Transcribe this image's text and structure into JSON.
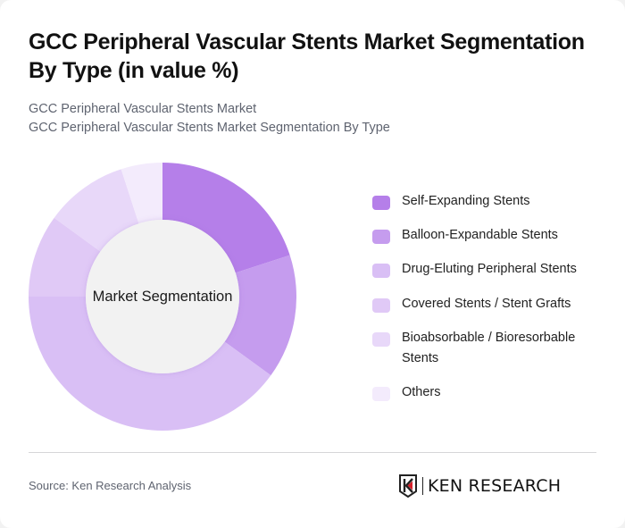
{
  "header": {
    "title": "GCC Peripheral Vascular Stents Market Segmentation By Type (in value %)",
    "subtitle_1": "GCC Peripheral Vascular Stents Market",
    "subtitle_2": "GCC Peripheral Vascular Stents Market Segmentation By Type"
  },
  "donut": {
    "center_label": "Market Segmentation"
  },
  "legend": {
    "items": [
      {
        "label": "Self-Expanding Stents",
        "color": "#b57fe9"
      },
      {
        "label": "Balloon-Expandable Stents",
        "color": "#c59cee"
      },
      {
        "label": "Drug-Eluting Peripheral Stents",
        "color": "#d9bff5"
      },
      {
        "label": "Covered Stents / Stent Grafts",
        "color": "#e0c9f6"
      },
      {
        "label": "Bioabsorbable / Bioresorbable Stents",
        "color": "#e8d8f9"
      },
      {
        "label": "Others",
        "color": "#f3ebfc"
      }
    ]
  },
  "footer": {
    "source": "Source: Ken Research Analysis",
    "logo_text": "KEN RESEARCH"
  },
  "chart_data": {
    "type": "pie",
    "subtype": "donut",
    "title": "GCC Peripheral Vascular Stents Market Segmentation By Type (in value %)",
    "subtitle": "GCC Peripheral Vascular Stents Market Segmentation By Type",
    "center_label": "Market Segmentation",
    "categories": [
      "Self-Expanding Stents",
      "Balloon-Expandable Stents",
      "Drug-Eluting Peripheral Stents",
      "Covered Stents / Stent Grafts",
      "Bioabsorbable / Bioresorbable Stents",
      "Others"
    ],
    "values": [
      20,
      15,
      40,
      10,
      10,
      5
    ],
    "unit": "%",
    "colors": [
      "#b57fe9",
      "#c59cee",
      "#d9bff5",
      "#e0c9f6",
      "#e8d8f9",
      "#f3ebfc"
    ],
    "start_angle": "12 o'clock, clockwise",
    "legend_position": "right",
    "data_labels": false,
    "source": "Source: Ken Research Analysis"
  }
}
